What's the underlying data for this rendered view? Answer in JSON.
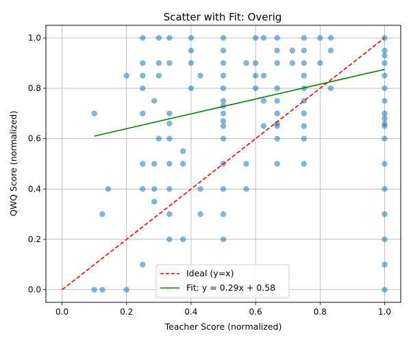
{
  "chart_data": {
    "type": "scatter",
    "title": "Scatter with Fit: Overig",
    "xlabel": "Teacher Score (normalized)",
    "ylabel": "QWQ Score (normalized)",
    "xlim": [
      -0.05,
      1.05
    ],
    "ylim": [
      -0.05,
      1.05
    ],
    "xticks": [
      0.0,
      0.2,
      0.4,
      0.6,
      0.8,
      1.0
    ],
    "yticks": [
      0.0,
      0.2,
      0.4,
      0.6,
      0.8,
      1.0
    ],
    "xtick_labels": [
      "0.0",
      "0.2",
      "0.4",
      "0.6",
      "0.8",
      "1.0"
    ],
    "ytick_labels": [
      "0.0",
      "0.2",
      "0.4",
      "0.6",
      "0.8",
      "1.0"
    ],
    "grid": true,
    "legend_position": "lower-center",
    "point_color": "#1f77b4",
    "series": [
      {
        "name": "",
        "kind": "scatter",
        "points": [
          [
            0.1,
            0.7
          ],
          [
            0.1,
            0.0
          ],
          [
            0.125,
            0.3
          ],
          [
            0.125,
            0.0
          ],
          [
            0.143,
            0.4
          ],
          [
            0.2,
            0.85
          ],
          [
            0.2,
            0.0
          ],
          [
            0.25,
            1.0
          ],
          [
            0.25,
            0.9
          ],
          [
            0.25,
            0.85
          ],
          [
            0.25,
            0.8
          ],
          [
            0.25,
            0.7
          ],
          [
            0.25,
            0.5
          ],
          [
            0.25,
            0.4
          ],
          [
            0.25,
            0.1
          ],
          [
            0.286,
            0.75
          ],
          [
            0.286,
            0.5
          ],
          [
            0.286,
            0.4
          ],
          [
            0.286,
            0.35
          ],
          [
            0.3,
            1.0
          ],
          [
            0.3,
            0.9
          ],
          [
            0.3,
            0.85
          ],
          [
            0.3,
            0.6
          ],
          [
            0.333,
            1.0
          ],
          [
            0.333,
            0.9
          ],
          [
            0.333,
            0.7
          ],
          [
            0.333,
            0.66
          ],
          [
            0.333,
            0.6
          ],
          [
            0.333,
            0.5
          ],
          [
            0.333,
            0.4
          ],
          [
            0.333,
            0.3
          ],
          [
            0.333,
            0.2
          ],
          [
            0.333,
            0.0
          ],
          [
            0.375,
            0.55
          ],
          [
            0.375,
            0.5
          ],
          [
            0.375,
            0.2
          ],
          [
            0.4,
            1.0
          ],
          [
            0.4,
            0.95
          ],
          [
            0.4,
            0.9
          ],
          [
            0.4,
            0.8
          ],
          [
            0.429,
            0.85
          ],
          [
            0.429,
            0.4
          ],
          [
            0.429,
            0.3
          ],
          [
            0.5,
            1.0
          ],
          [
            0.5,
            0.95
          ],
          [
            0.5,
            0.9
          ],
          [
            0.5,
            0.85
          ],
          [
            0.5,
            0.8
          ],
          [
            0.5,
            0.75
          ],
          [
            0.5,
            0.73
          ],
          [
            0.5,
            0.7
          ],
          [
            0.5,
            0.67
          ],
          [
            0.5,
            0.65
          ],
          [
            0.5,
            0.6
          ],
          [
            0.5,
            0.5
          ],
          [
            0.5,
            0.4
          ],
          [
            0.5,
            0.3
          ],
          [
            0.5,
            0.2
          ],
          [
            0.571,
            0.9
          ],
          [
            0.571,
            0.5
          ],
          [
            0.571,
            0.4
          ],
          [
            0.6,
            1.0
          ],
          [
            0.6,
            0.9
          ],
          [
            0.6,
            0.85
          ],
          [
            0.6,
            0.8
          ],
          [
            0.625,
            1.0
          ],
          [
            0.625,
            0.85
          ],
          [
            0.625,
            0.75
          ],
          [
            0.625,
            0.65
          ],
          [
            0.667,
            1.0
          ],
          [
            0.667,
            0.95
          ],
          [
            0.667,
            0.9
          ],
          [
            0.667,
            0.8
          ],
          [
            0.667,
            0.75
          ],
          [
            0.667,
            0.7
          ],
          [
            0.667,
            0.66
          ],
          [
            0.667,
            0.65
          ],
          [
            0.667,
            0.6
          ],
          [
            0.667,
            0.5
          ],
          [
            0.714,
            0.95
          ],
          [
            0.714,
            0.9
          ],
          [
            0.75,
            1.0
          ],
          [
            0.75,
            0.95
          ],
          [
            0.75,
            0.9
          ],
          [
            0.75,
            0.85
          ],
          [
            0.75,
            0.8
          ],
          [
            0.75,
            0.75
          ],
          [
            0.75,
            0.7
          ],
          [
            0.75,
            0.65
          ],
          [
            0.75,
            0.6
          ],
          [
            0.75,
            0.5
          ],
          [
            0.8,
            1.0
          ],
          [
            0.8,
            0.9
          ],
          [
            0.833,
            1.0
          ],
          [
            0.833,
            0.95
          ],
          [
            0.833,
            0.8
          ],
          [
            1.0,
            1.0
          ],
          [
            1.0,
            0.95
          ],
          [
            1.0,
            0.93
          ],
          [
            1.0,
            0.9
          ],
          [
            1.0,
            0.85
          ],
          [
            1.0,
            0.8
          ],
          [
            1.0,
            0.75
          ],
          [
            1.0,
            0.7
          ],
          [
            1.0,
            0.68
          ],
          [
            1.0,
            0.66
          ],
          [
            1.0,
            0.65
          ],
          [
            1.0,
            0.6
          ],
          [
            1.0,
            0.5
          ],
          [
            1.0,
            0.4
          ],
          [
            1.0,
            0.3
          ],
          [
            1.0,
            0.2
          ],
          [
            1.0,
            0.1
          ],
          [
            1.0,
            0.0
          ]
        ]
      },
      {
        "name": "Ideal (y=x)",
        "kind": "line",
        "color": "#ff0000",
        "dashed": true,
        "x": [
          0.0,
          1.0
        ],
        "y": [
          0.0,
          1.0
        ]
      },
      {
        "name": "Fit: y = 0.29x + 0.58",
        "kind": "line",
        "color": "#008000",
        "dashed": false,
        "x": [
          0.1,
          1.0
        ],
        "y": [
          0.61,
          0.875
        ]
      }
    ]
  }
}
